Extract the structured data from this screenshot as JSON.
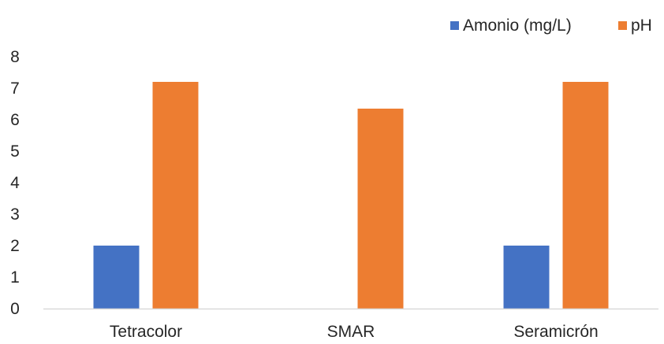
{
  "chart_data": {
    "type": "bar",
    "categories": [
      "Tetracolor",
      "SMAR",
      "Seramicrón"
    ],
    "series": [
      {
        "name": "Amonio (mg/L)",
        "values": [
          2,
          0,
          2
        ],
        "color": "#4472C4"
      },
      {
        "name": "pH",
        "values": [
          7.2,
          6.35,
          7.2
        ],
        "color": "#ED7D31"
      }
    ],
    "ylim": [
      0,
      8
    ],
    "yticks": [
      "0",
      "1",
      "2",
      "3",
      "4",
      "5",
      "6",
      "7",
      "8"
    ],
    "grid": false,
    "legend_position": "top-right",
    "axis_color": "#D9D9D9"
  }
}
